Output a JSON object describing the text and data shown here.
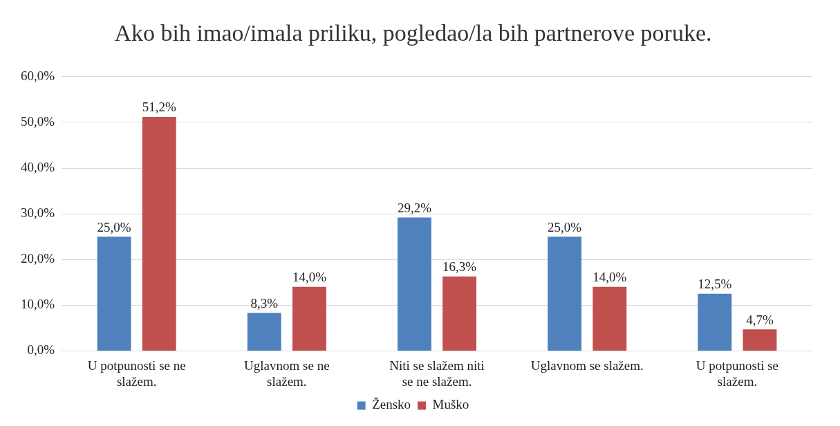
{
  "chart_data": {
    "type": "bar",
    "title": "Ako bih imao/imala priliku, pogledao/la bih partnerove poruke.",
    "categories": [
      "U potpunosti se ne slažem.",
      "Uglavnom se ne slažem.",
      "Niti se slažem niti se ne slažem.",
      "Uglavnom se slažem.",
      "U potpunosti se slažem."
    ],
    "series": [
      {
        "name": "Žensko",
        "color": "#4f81bd",
        "values": [
          25.0,
          8.3,
          29.2,
          25.0,
          12.5
        ],
        "value_labels": [
          "25,0%",
          "8,3%",
          "29,2%",
          "25,0%",
          "12,5%"
        ]
      },
      {
        "name": "Muško",
        "color": "#c0504d",
        "values": [
          51.2,
          14.0,
          16.3,
          14.0,
          4.7
        ],
        "value_labels": [
          "51,2%",
          "14,0%",
          "16,3%",
          "14,0%",
          "4,7%"
        ]
      }
    ],
    "ylim": [
      0,
      60
    ],
    "yticks": [
      {
        "value": 0,
        "label": "0,0%"
      },
      {
        "value": 10,
        "label": "10,0%"
      },
      {
        "value": 20,
        "label": "20,0%"
      },
      {
        "value": 30,
        "label": "30,0%"
      },
      {
        "value": 40,
        "label": "40,0%"
      },
      {
        "value": 50,
        "label": "50,0%"
      },
      {
        "value": 60,
        "label": "60,0%"
      }
    ],
    "grid": "y",
    "legend": "bottom"
  }
}
